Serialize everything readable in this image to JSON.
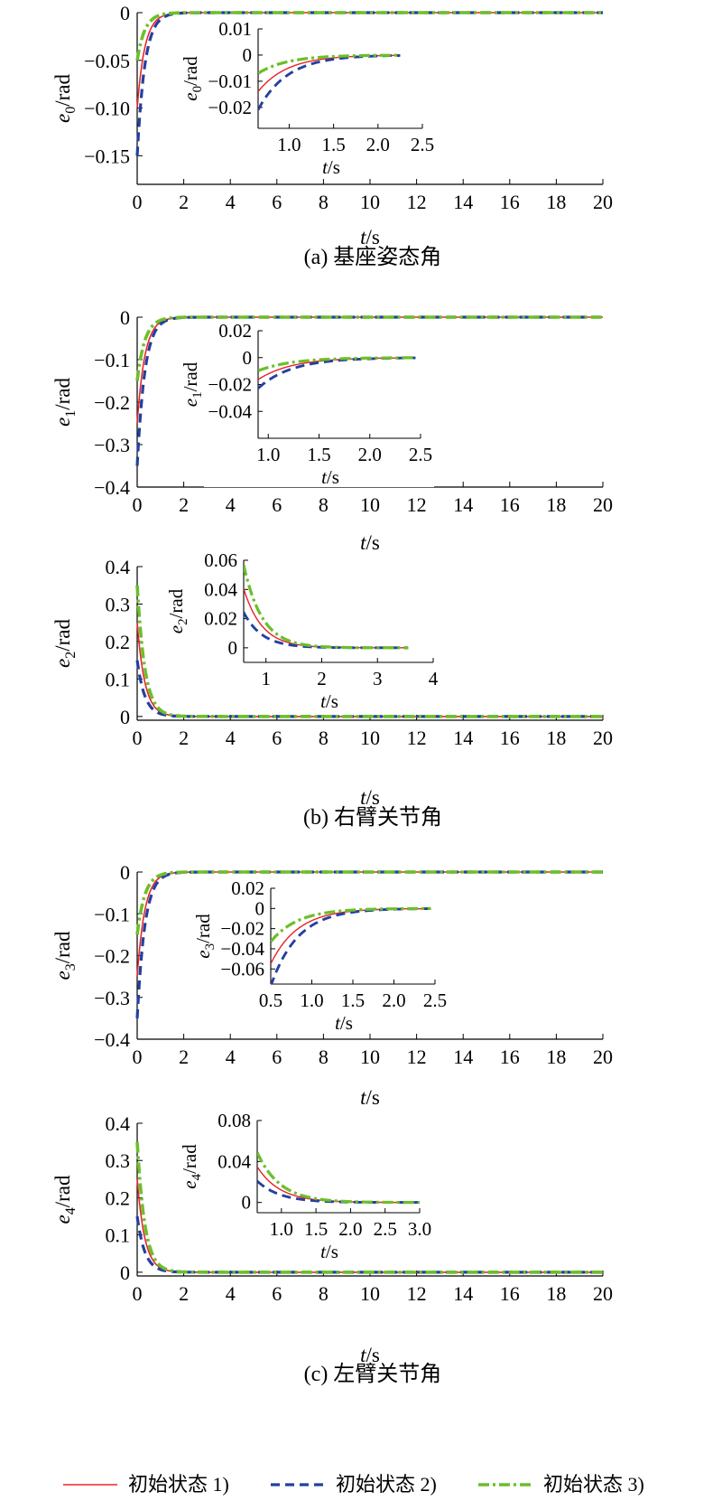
{
  "chart_data": [
    {
      "type": "line",
      "panel": "a",
      "caption": "(a) 基座姿态角",
      "xlabel": "t/s",
      "ylabel": "e0/rad",
      "ylabel_parts": [
        "e",
        "0",
        "/rad"
      ],
      "xlim": [
        0,
        20
      ],
      "ylim": [
        -0.18,
        0
      ],
      "xticks": [
        0,
        2,
        4,
        6,
        8,
        10,
        12,
        14,
        16,
        18,
        20
      ],
      "yticks": [
        0,
        -0.05,
        -0.1,
        -0.15
      ],
      "ytick_labels": [
        "0",
        "−0.05",
        "−0.10",
        "−0.15"
      ],
      "series": [
        {
          "name": "初始状态 1)",
          "y0": -0.1,
          "tau": 0.33
        },
        {
          "name": "初始状态 2)",
          "y0": -0.15,
          "tau": 0.33
        },
        {
          "name": "初始状态 3)",
          "y0": -0.05,
          "tau": 0.33
        }
      ],
      "inset": {
        "xlabel": "t/s",
        "ylabel_parts": [
          "e",
          "0",
          "/rad"
        ],
        "xlim": [
          0.65,
          2.5
        ],
        "ylim": [
          -0.028,
          0.01
        ],
        "xticks": [
          1.0,
          1.5,
          2.0,
          2.5
        ],
        "xtick_labels": [
          "1.0",
          "1.5",
          "2.0",
          "2.5"
        ],
        "yticks": [
          0.01,
          0,
          -0.01,
          -0.02
        ],
        "ytick_labels": [
          "0.01",
          "0",
          "−0.01",
          "−0.02"
        ],
        "xend": 2.25
      }
    },
    {
      "type": "line",
      "panel": "b1",
      "caption": "",
      "xlabel": "t/s",
      "ylabel": "e1/rad",
      "ylabel_parts": [
        "e",
        "1",
        "/rad"
      ],
      "xlim": [
        0,
        20
      ],
      "ylim": [
        -0.4,
        0
      ],
      "xticks": [
        0,
        2,
        4,
        6,
        8,
        10,
        12,
        14,
        16,
        18,
        20
      ],
      "yticks": [
        0,
        -0.1,
        -0.2,
        -0.3,
        -0.4
      ],
      "ytick_labels": [
        "0",
        "−0.1",
        "−0.2",
        "−0.3",
        "−0.4"
      ],
      "series": [
        {
          "name": "初始状态 1)",
          "y0": -0.25,
          "tau": 0.33
        },
        {
          "name": "初始状态 2)",
          "y0": -0.35,
          "tau": 0.33
        },
        {
          "name": "初始状态 3)",
          "y0": -0.15,
          "tau": 0.33
        }
      ],
      "inset": {
        "xlabel": "t/s",
        "ylabel_parts": [
          "e",
          "1",
          "/rad"
        ],
        "xlim": [
          0.9,
          2.5
        ],
        "ylim": [
          -0.06,
          0.02
        ],
        "xticks": [
          1.0,
          1.5,
          2.0,
          2.5
        ],
        "xtick_labels": [
          "1.0",
          "1.5",
          "2.0",
          "2.5"
        ],
        "yticks": [
          0.02,
          0,
          -0.02,
          -0.04
        ],
        "ytick_labels": [
          "0.02",
          "0",
          "−0.02",
          "−0.04"
        ],
        "xend": 2.45
      }
    },
    {
      "type": "line",
      "panel": "b2",
      "caption": "(b) 右臂关节角",
      "xlabel": "t/s",
      "ylabel": "e2/rad",
      "ylabel_parts": [
        "e",
        "2",
        "/rad"
      ],
      "xlim": [
        0,
        20
      ],
      "ylim": [
        -0.01,
        0.4
      ],
      "xticks": [
        0,
        2,
        4,
        6,
        8,
        10,
        12,
        14,
        16,
        18,
        20
      ],
      "yticks": [
        0.4,
        0.3,
        0.2,
        0.1,
        0
      ],
      "ytick_labels": [
        "0.4",
        "0.3",
        "0.2",
        "0.1",
        "0"
      ],
      "series": [
        {
          "name": "初始状态 1)",
          "y0": 0.25,
          "tau": 0.33
        },
        {
          "name": "初始状态 2)",
          "y0": 0.15,
          "tau": 0.33
        },
        {
          "name": "初始状态 3)",
          "y0": 0.35,
          "tau": 0.33
        }
      ],
      "inset": {
        "xlabel": "t/s",
        "ylabel_parts": [
          "e",
          "2",
          "/rad"
        ],
        "xlim": [
          0.6,
          4
        ],
        "ylim": [
          -0.01,
          0.06
        ],
        "xticks": [
          1,
          2,
          3,
          4
        ],
        "xtick_labels": [
          "1",
          "2",
          "3",
          "4"
        ],
        "yticks": [
          0.06,
          0.04,
          0.02,
          0
        ],
        "ytick_labels": [
          "0.06",
          "0.04",
          "0.02",
          "0"
        ],
        "xend": 3.55
      }
    },
    {
      "type": "line",
      "panel": "c1",
      "caption": "",
      "xlabel": "t/s",
      "ylabel": "e3/rad",
      "ylabel_parts": [
        "e",
        "3",
        "/rad"
      ],
      "xlim": [
        0,
        20
      ],
      "ylim": [
        -0.4,
        0
      ],
      "xticks": [
        0,
        2,
        4,
        6,
        8,
        10,
        12,
        14,
        16,
        18,
        20
      ],
      "yticks": [
        0,
        -0.1,
        -0.2,
        -0.3,
        -0.4
      ],
      "ytick_labels": [
        "0",
        "−0.1",
        "−0.2",
        "−0.3",
        "−0.4"
      ],
      "series": [
        {
          "name": "初始状态 1)",
          "y0": -0.25,
          "tau": 0.33
        },
        {
          "name": "初始状态 2)",
          "y0": -0.35,
          "tau": 0.33
        },
        {
          "name": "初始状态 3)",
          "y0": -0.15,
          "tau": 0.33
        }
      ],
      "inset": {
        "xlabel": "t/s",
        "ylabel_parts": [
          "e",
          "3",
          "/rad"
        ],
        "xlim": [
          0.5,
          2.5
        ],
        "ylim": [
          -0.075,
          0.02
        ],
        "xticks": [
          0.5,
          1.0,
          1.5,
          2.0,
          2.5
        ],
        "xtick_labels": [
          "0.5",
          "1.0",
          "1.5",
          "2.0",
          "2.5"
        ],
        "yticks": [
          0.02,
          0,
          -0.02,
          -0.04,
          -0.06
        ],
        "ytick_labels": [
          "0.02",
          "0",
          "−0.02",
          "−0.04",
          "−0.06"
        ],
        "xend": 2.45
      }
    },
    {
      "type": "line",
      "panel": "c2",
      "caption": "(c) 左臂关节角",
      "xlabel": "t/s",
      "ylabel": "e4/rad",
      "ylabel_parts": [
        "e",
        "4",
        "/rad"
      ],
      "xlim": [
        0,
        20
      ],
      "ylim": [
        -0.01,
        0.4
      ],
      "xticks": [
        0,
        2,
        4,
        6,
        8,
        10,
        12,
        14,
        16,
        18,
        20
      ],
      "yticks": [
        0.4,
        0.3,
        0.2,
        0.1,
        0
      ],
      "ytick_labels": [
        "0.4",
        "0.3",
        "0.2",
        "0.1",
        "0"
      ],
      "series": [
        {
          "name": "初始状态 1)",
          "y0": 0.25,
          "tau": 0.33
        },
        {
          "name": "初始状态 2)",
          "y0": 0.15,
          "tau": 0.33
        },
        {
          "name": "初始状态 3)",
          "y0": 0.35,
          "tau": 0.33
        }
      ],
      "inset": {
        "xlabel": "t/s",
        "ylabel_parts": [
          "e",
          "4",
          "/rad"
        ],
        "xlim": [
          0.65,
          3.0
        ],
        "ylim": [
          -0.01,
          0.08
        ],
        "xticks": [
          1.0,
          1.5,
          2.0,
          2.5,
          3.0
        ],
        "xtick_labels": [
          "1.0",
          "1.5",
          "2.0",
          "2.5",
          "3.0"
        ],
        "yticks": [
          0.08,
          0.04,
          0
        ],
        "ytick_labels": [
          "0.08",
          "0.04",
          "0"
        ],
        "xend": 3.0
      }
    }
  ],
  "legend": {
    "placement": "bottom",
    "items": [
      {
        "label": "初始状态 1)",
        "color": "#e8262b",
        "style": "solid"
      },
      {
        "label": "初始状态 2)",
        "color": "#2340a0",
        "style": "dashed"
      },
      {
        "label": "初始状态 3)",
        "color": "#6cbf2a",
        "style": "dash-dot"
      }
    ]
  },
  "colors": {
    "s1": "#e8262b",
    "s2": "#2340a0",
    "s3": "#6cbf2a",
    "axis": "#000000"
  }
}
